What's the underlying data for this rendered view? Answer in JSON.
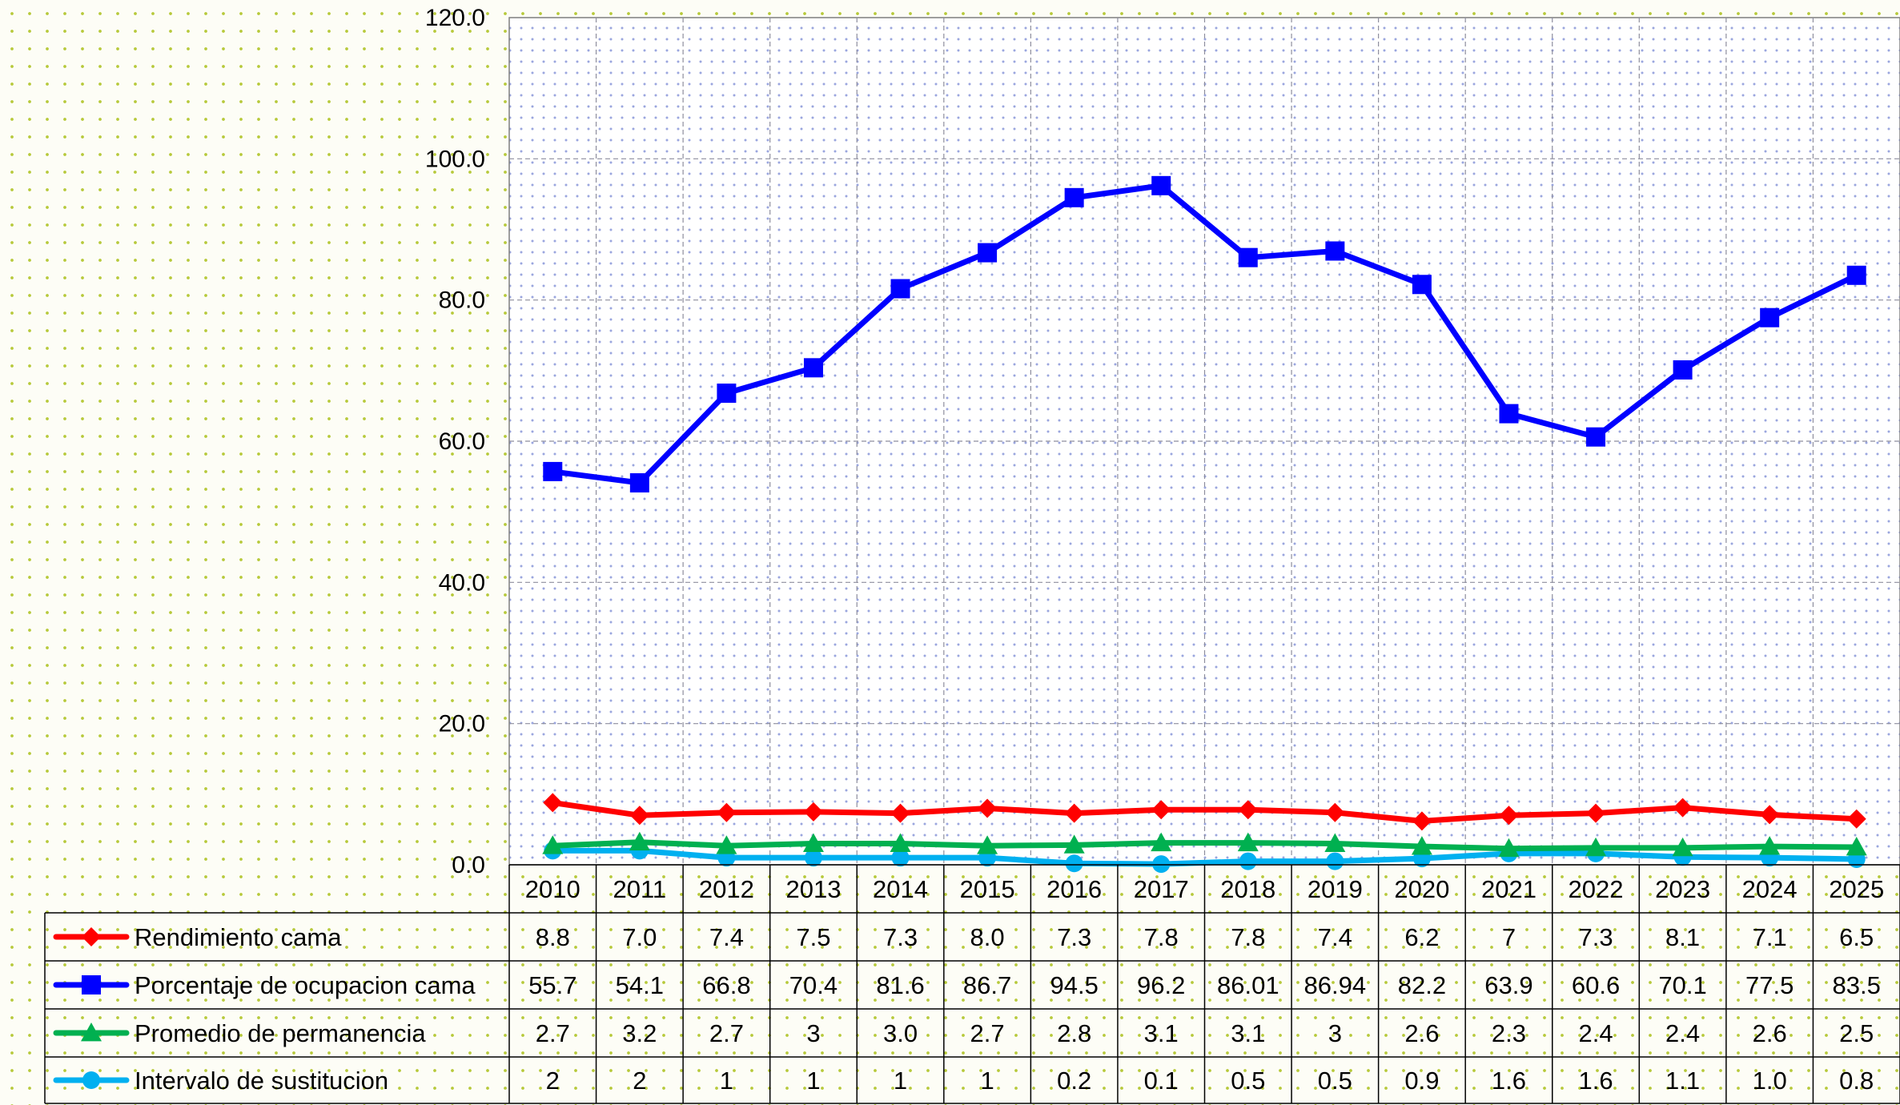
{
  "chart_data": {
    "type": "line",
    "title": "",
    "xlabel": "",
    "ylabel": "",
    "ylim": [
      0,
      120
    ],
    "yticks": [
      "0.0",
      "20.0",
      "40.0",
      "60.0",
      "80.0",
      "100.0",
      "120.0"
    ],
    "grid": true,
    "legend_placement": "data-table-left",
    "categories": [
      "2010",
      "2011",
      "2012",
      "2013",
      "2014",
      "2015",
      "2016",
      "2017",
      "2018",
      "2019",
      "2020",
      "2021",
      "2022",
      "2023",
      "2024",
      "2025"
    ],
    "series": [
      {
        "name": "Rendimiento cama",
        "color": "#ff0000",
        "marker": "diamond",
        "values": [
          8.8,
          7.0,
          7.4,
          7.5,
          7.3,
          8.0,
          7.3,
          7.8,
          7.8,
          7.4,
          6.2,
          7,
          7.3,
          8.1,
          7.1,
          6.5
        ],
        "labels": [
          "8.8",
          "7.0",
          "7.4",
          "7.5",
          "7.3",
          "8.0",
          "7.3",
          "7.8",
          "7.8",
          "7.4",
          "6.2",
          "7",
          "7.3",
          "8.1",
          "7.1",
          "6.5"
        ]
      },
      {
        "name": "Porcentaje de ocupacion cama",
        "color": "#0000ff",
        "marker": "square",
        "values": [
          55.7,
          54.1,
          66.8,
          70.4,
          81.6,
          86.7,
          94.5,
          96.2,
          86.01,
          86.94,
          82.2,
          63.9,
          60.6,
          70.1,
          77.5,
          83.5
        ],
        "labels": [
          "55.7",
          "54.1",
          "66.8",
          "70.4",
          "81.6",
          "86.7",
          "94.5",
          "96.2",
          "86.01",
          "86.94",
          "82.2",
          "63.9",
          "60.6",
          "70.1",
          "77.5",
          "83.5"
        ]
      },
      {
        "name": "Promedio de permanencia",
        "color": "#00b050",
        "marker": "triangle",
        "values": [
          2.7,
          3.2,
          2.7,
          3,
          3.0,
          2.7,
          2.8,
          3.1,
          3.1,
          3,
          2.6,
          2.3,
          2.4,
          2.4,
          2.6,
          2.5
        ],
        "labels": [
          "2.7",
          "3.2",
          "2.7",
          "3",
          "3.0",
          "2.7",
          "2.8",
          "3.1",
          "3.1",
          "3",
          "2.6",
          "2.3",
          "2.4",
          "2.4",
          "2.6",
          "2.5"
        ]
      },
      {
        "name": "Intervalo de sustitucion",
        "color": "#00b0f0",
        "marker": "circle",
        "values": [
          2,
          2,
          1,
          1,
          1,
          1,
          0.2,
          0.1,
          0.5,
          0.5,
          0.9,
          1.6,
          1.6,
          1.1,
          1.0,
          0.8
        ],
        "labels": [
          "2",
          "2",
          "1",
          "1",
          "1",
          "1",
          "0.2",
          "0.1",
          "0.5",
          "0.5",
          "0.9",
          "1.6",
          "1.6",
          "1.1",
          "1.0",
          "0.8"
        ]
      }
    ]
  }
}
